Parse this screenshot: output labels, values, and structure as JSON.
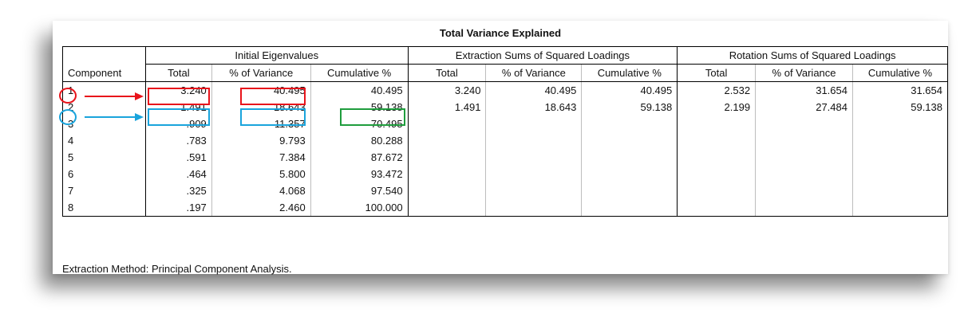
{
  "title": "Total Variance Explained",
  "headers": {
    "component": "Component",
    "groups": [
      "Initial Eigenvalues",
      "Extraction Sums of Squared Loadings",
      "Rotation Sums of Squared Loadings"
    ],
    "sub": [
      "Total",
      "% of Variance",
      "Cumulative %"
    ]
  },
  "rows": [
    {
      "component": "1",
      "initial": [
        "3.240",
        "40.495",
        "40.495"
      ],
      "extraction": [
        "3.240",
        "40.495",
        "40.495"
      ],
      "rotation": [
        "2.532",
        "31.654",
        "31.654"
      ]
    },
    {
      "component": "2",
      "initial": [
        "1.491",
        "18.643",
        "59.138"
      ],
      "extraction": [
        "1.491",
        "18.643",
        "59.138"
      ],
      "rotation": [
        "2.199",
        "27.484",
        "59.138"
      ]
    },
    {
      "component": "3",
      "initial": [
        ".909",
        "11.357",
        "70.495"
      ],
      "extraction": [
        "",
        "",
        ""
      ],
      "rotation": [
        "",
        "",
        ""
      ]
    },
    {
      "component": "4",
      "initial": [
        ".783",
        "9.793",
        "80.288"
      ],
      "extraction": [
        "",
        "",
        ""
      ],
      "rotation": [
        "",
        "",
        ""
      ]
    },
    {
      "component": "5",
      "initial": [
        ".591",
        "7.384",
        "87.672"
      ],
      "extraction": [
        "",
        "",
        ""
      ],
      "rotation": [
        "",
        "",
        ""
      ]
    },
    {
      "component": "6",
      "initial": [
        ".464",
        "5.800",
        "93.472"
      ],
      "extraction": [
        "",
        "",
        ""
      ],
      "rotation": [
        "",
        "",
        ""
      ]
    },
    {
      "component": "7",
      "initial": [
        ".325",
        "4.068",
        "97.540"
      ],
      "extraction": [
        "",
        "",
        ""
      ],
      "rotation": [
        "",
        "",
        ""
      ]
    },
    {
      "component": "8",
      "initial": [
        ".197",
        "2.460",
        "100.000"
      ],
      "extraction": [
        "",
        "",
        ""
      ],
      "rotation": [
        "",
        "",
        ""
      ]
    }
  ],
  "footer": "Extraction Method: Principal Component Analysis.",
  "annotation_colors": {
    "red": "#e8141b",
    "blue": "#1aa4dc",
    "green": "#1f9d3d"
  }
}
